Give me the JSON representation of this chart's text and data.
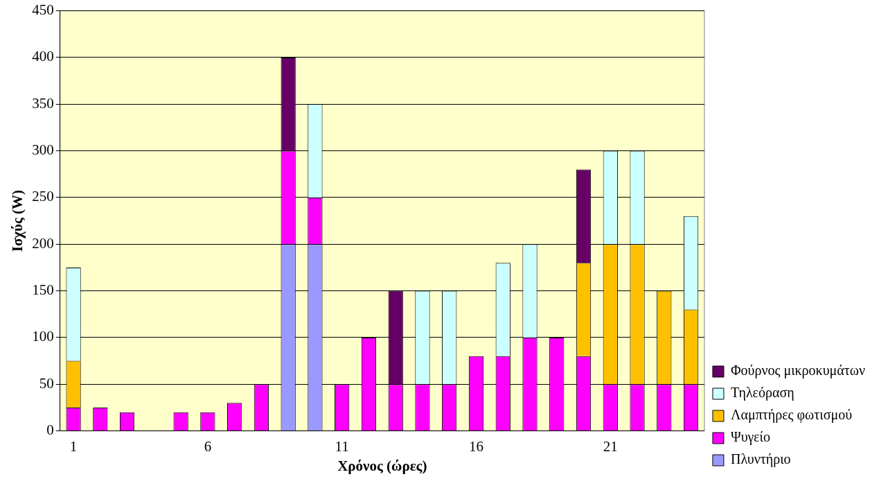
{
  "chart_data": {
    "type": "bar",
    "stacked": true,
    "xlabel": "Χρόνος (ώρες)",
    "ylabel": "Ισχύς (W)",
    "categories": [
      "1",
      null,
      null,
      null,
      null,
      "6",
      null,
      null,
      null,
      null,
      "11",
      null,
      null,
      null,
      null,
      "16",
      null,
      null,
      null,
      null,
      "21",
      null,
      null,
      null
    ],
    "series": [
      {
        "name": "Πλυντήριο",
        "color": "#9999ff",
        "values": [
          null,
          null,
          null,
          null,
          null,
          null,
          null,
          null,
          200,
          200,
          null,
          null,
          null,
          null,
          null,
          null,
          null,
          null,
          null,
          null,
          null,
          null,
          null,
          null
        ]
      },
      {
        "name": "Ψυγείο",
        "color": "#ff00ff",
        "values": [
          25,
          25,
          20,
          null,
          20,
          20,
          30,
          50,
          100,
          50,
          50,
          100,
          50,
          50,
          50,
          80,
          80,
          100,
          100,
          80,
          50,
          50,
          50,
          50
        ]
      },
      {
        "name": "Λαμπτήρες φωτισμού",
        "color": "#ffc000",
        "values": [
          50,
          null,
          null,
          null,
          null,
          null,
          null,
          null,
          null,
          null,
          null,
          null,
          null,
          null,
          null,
          null,
          null,
          null,
          null,
          100,
          150,
          150,
          100,
          80
        ]
      },
      {
        "name": "Τηλεόραση",
        "color": "#ccffff",
        "values": [
          100,
          null,
          null,
          null,
          null,
          null,
          null,
          null,
          null,
          100,
          null,
          null,
          null,
          100,
          100,
          null,
          100,
          100,
          null,
          null,
          100,
          100,
          null,
          100
        ]
      },
      {
        "name": "Φούρνος μικροκυμάτων",
        "color": "#660066",
        "values": [
          null,
          null,
          null,
          null,
          null,
          null,
          null,
          null,
          100,
          null,
          null,
          null,
          100,
          null,
          null,
          null,
          null,
          null,
          null,
          100,
          null,
          null,
          null,
          null
        ]
      }
    ],
    "ylim": [
      0,
      450
    ],
    "yticks": [
      0,
      50,
      100,
      150,
      200,
      250,
      300,
      350,
      400,
      450
    ],
    "grid": "y",
    "legend": "bottom right"
  }
}
